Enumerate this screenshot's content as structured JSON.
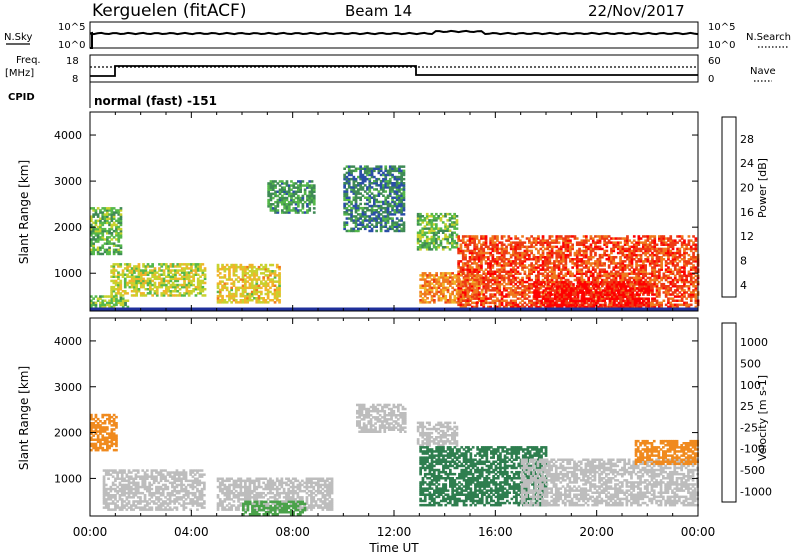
{
  "header": {
    "station": "Kerguelen (fitACF)",
    "beam": "Beam 14",
    "date": "22/Nov/2017"
  },
  "panels": {
    "nsky": {
      "left_label": "N.Sky",
      "right_label": "N.Search",
      "left_ticks": [
        "10^5",
        "10^0"
      ],
      "right_ticks": [
        "10^5",
        "10^0"
      ]
    },
    "freq": {
      "left_label_1": "Freq.",
      "left_label_2": "[MHz]",
      "right_label": "Nave",
      "left_ticks": [
        "18",
        "8"
      ],
      "right_ticks": [
        "60",
        "0"
      ]
    },
    "cpid": {
      "label": "CPID",
      "text": "normal (fast) -151"
    },
    "power": {
      "ylabel": "Slant Range [km]",
      "colorbar_label": "Power [dB]",
      "colorbar_ticks": [
        "28",
        "24",
        "20",
        "16",
        "12",
        "8",
        "4"
      ],
      "colors": [
        "#0000ff",
        "#2b4ea8",
        "#3f8a55",
        "#55b84a",
        "#c8d22e",
        "#f0b42a",
        "#f07a1e",
        "#ee3a14",
        "#ff0000"
      ]
    },
    "velocity": {
      "ylabel": "Slant Range [km]",
      "colorbar_label": "Velocity [m s-1]",
      "colorbar_ticks": [
        "1000",
        "500",
        "100",
        "25",
        "-25",
        "-100",
        "-500",
        "-1000"
      ],
      "colors": [
        "#1f3fa8",
        "#2e7e4f",
        "#4aa24a",
        "#7ed23a",
        "#bdbdbd",
        "#f0c43c",
        "#f08a1e",
        "#ee5a14",
        "#ff0000"
      ]
    }
  },
  "x_axis": {
    "label": "Time UT",
    "ticks": [
      "00:00",
      "04:00",
      "08:00",
      "12:00",
      "16:00",
      "20:00",
      "00:00"
    ]
  },
  "chart_data": [
    {
      "type": "heatmap",
      "title": "Power [dB]",
      "xlabel": "Time UT",
      "ylabel": "Slant Range [km]",
      "x_range_hours": [
        0,
        24
      ],
      "y_range_km": [
        180,
        4500
      ],
      "y_ticks": [
        1000,
        2000,
        3000,
        4000
      ],
      "colorbar_range": [
        0,
        32
      ],
      "colorbar_ticks": [
        4,
        8,
        12,
        16,
        20,
        24,
        28
      ],
      "regions": [
        {
          "t0": 0.0,
          "t1": 1.5,
          "r0": 250,
          "r1": 500,
          "value": 14
        },
        {
          "t0": 0.0,
          "t1": 1.2,
          "r0": 1400,
          "r1": 2400,
          "value": 12
        },
        {
          "t0": 0.8,
          "t1": 4.5,
          "r0": 500,
          "r1": 1200,
          "value": 16
        },
        {
          "t0": 5.0,
          "t1": 7.5,
          "r0": 350,
          "r1": 1200,
          "value": 18
        },
        {
          "t0": 7.0,
          "t1": 8.8,
          "r0": 2300,
          "r1": 3000,
          "value": 10
        },
        {
          "t0": 10.0,
          "t1": 12.4,
          "r0": 1900,
          "r1": 3300,
          "value": 8
        },
        {
          "t0": 12.9,
          "t1": 14.5,
          "r0": 1500,
          "r1": 2300,
          "value": 12
        },
        {
          "t0": 13.0,
          "t1": 15.5,
          "r0": 350,
          "r1": 1000,
          "value": 22
        },
        {
          "t0": 14.5,
          "t1": 24.0,
          "r0": 250,
          "r1": 1800,
          "value": 26
        },
        {
          "t0": 17.5,
          "t1": 22.0,
          "r0": 200,
          "r1": 800,
          "value": 30
        }
      ]
    },
    {
      "type": "heatmap",
      "title": "Velocity [m s-1]",
      "xlabel": "Time UT",
      "ylabel": "Slant Range [km]",
      "x_range_hours": [
        0,
        24
      ],
      "y_range_km": [
        180,
        4500
      ],
      "y_ticks": [
        1000,
        2000,
        3000,
        4000
      ],
      "colorbar_ticks": [
        1000,
        500,
        100,
        25,
        -25,
        -100,
        -500,
        -1000
      ],
      "regions": [
        {
          "t0": 0.0,
          "t1": 1.0,
          "r0": 1600,
          "r1": 2400,
          "value": -300
        },
        {
          "t0": 0.5,
          "t1": 4.5,
          "r0": 300,
          "r1": 1200,
          "value": 0
        },
        {
          "t0": 5.0,
          "t1": 9.5,
          "r0": 300,
          "r1": 1000,
          "value": 0
        },
        {
          "t0": 6.0,
          "t1": 8.5,
          "r0": 200,
          "r1": 500,
          "value": 60
        },
        {
          "t0": 10.5,
          "t1": 12.4,
          "r0": 2000,
          "r1": 2600,
          "value": 0
        },
        {
          "t0": 12.9,
          "t1": 14.5,
          "r0": 1700,
          "r1": 2200,
          "value": 0
        },
        {
          "t0": 13.0,
          "t1": 18.0,
          "r0": 400,
          "r1": 1700,
          "value": 150
        },
        {
          "t0": 17.0,
          "t1": 24.0,
          "r0": 400,
          "r1": 1400,
          "value": 0
        },
        {
          "t0": 21.5,
          "t1": 24.0,
          "r0": 1300,
          "r1": 1800,
          "value": -200
        }
      ]
    }
  ]
}
